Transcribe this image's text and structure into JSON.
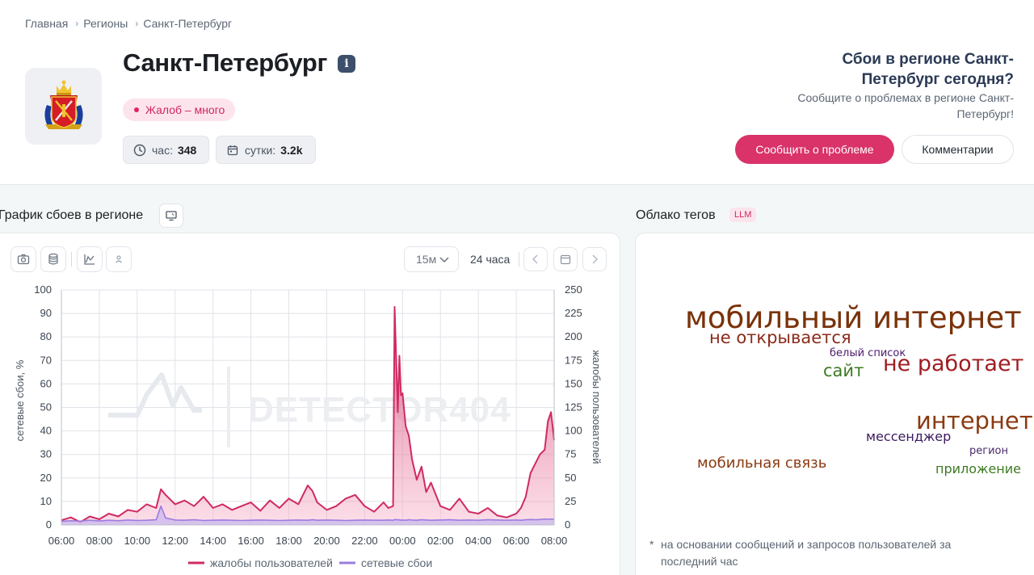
{
  "breadcrumb": [
    "Главная",
    "Регионы",
    "Санкт-Петербург"
  ],
  "page": {
    "title": "Санкт-Петербург",
    "info": "i"
  },
  "status": {
    "label": "Жалоб – много"
  },
  "stats": {
    "hour": {
      "label": "час:",
      "value": "348"
    },
    "day": {
      "label": "сутки:",
      "value": "3.2k"
    }
  },
  "right": {
    "title": "Сбои в регионе Санкт-Петербург сегодня?",
    "subtitle": "Сообщите о проблемах в регионе Санкт-Петербург!",
    "report_button": "Сообщить о проблеме",
    "comments_button": "Комментарии"
  },
  "chart_section": {
    "title": "График сбоев в регионе"
  },
  "toolbar": {
    "interval": "15м",
    "range": "24 часа"
  },
  "cloud_section": {
    "title": "Облако тегов",
    "badge": "LLM"
  },
  "cloud_words": [
    {
      "text": "мобильный интернет",
      "color": "#7a3209"
    },
    {
      "text": "не открывается",
      "color": "#8b2b1a"
    },
    {
      "text": "белый список",
      "color": "#4a1a6b"
    },
    {
      "text": "сайт",
      "color": "#3d7a22"
    },
    {
      "text": "не работает",
      "color": "#a01c22"
    },
    {
      "text": "интернет",
      "color": "#8a3a10"
    },
    {
      "text": "мессенджер",
      "color": "#3a1a5e"
    },
    {
      "text": "регион",
      "color": "#4a2a6b"
    },
    {
      "text": "мобильная связь",
      "color": "#8a3a10"
    },
    {
      "text": "приложение",
      "color": "#3d7a22"
    }
  ],
  "footnote": {
    "star": "*",
    "text": "на основании сообщений и запросов пользователей за последний час"
  },
  "colors": {
    "complaints": "#d02a62",
    "outages": "#9b7de0",
    "accent": "#d9336a"
  },
  "chart_data": {
    "type": "area",
    "x": [
      "06:00",
      "06:30",
      "07:00",
      "07:30",
      "08:00",
      "08:30",
      "09:00",
      "09:30",
      "10:00",
      "10:30",
      "11:00",
      "11:15",
      "11:30",
      "12:00",
      "12:30",
      "13:00",
      "13:30",
      "14:00",
      "14:30",
      "15:00",
      "15:30",
      "16:00",
      "16:30",
      "17:00",
      "17:30",
      "18:00",
      "18:30",
      "19:00",
      "19:15",
      "19:30",
      "20:00",
      "20:30",
      "21:00",
      "21:30",
      "22:00",
      "22:30",
      "23:00",
      "23:15",
      "23:30",
      "23:35",
      "23:40",
      "23:45",
      "23:50",
      "23:55",
      "00:00",
      "00:10",
      "00:20",
      "00:30",
      "00:45",
      "01:00",
      "01:15",
      "01:30",
      "02:00",
      "02:30",
      "03:00",
      "03:30",
      "04:00",
      "04:30",
      "05:00",
      "05:30",
      "06:00",
      "06:15",
      "06:30",
      "06:45",
      "07:00",
      "07:15",
      "07:30",
      "07:40",
      "07:50",
      "08:00"
    ],
    "series": [
      {
        "name": "жалобы пользователей",
        "axis": "right",
        "values": [
          5,
          8,
          3,
          9,
          6,
          12,
          9,
          16,
          14,
          22,
          18,
          38,
          32,
          22,
          26,
          20,
          30,
          18,
          22,
          16,
          20,
          24,
          15,
          26,
          18,
          28,
          22,
          42,
          36,
          24,
          16,
          20,
          28,
          32,
          20,
          14,
          24,
          18,
          20,
          232,
          175,
          120,
          180,
          138,
          140,
          105,
          95,
          70,
          48,
          62,
          35,
          45,
          20,
          16,
          28,
          14,
          12,
          18,
          10,
          8,
          12,
          18,
          30,
          55,
          65,
          75,
          80,
          110,
          120,
          90
        ]
      },
      {
        "name": "сетевые сбои",
        "axis": "left",
        "values": [
          1.5,
          1.8,
          1.6,
          2,
          1.7,
          2,
          1.8,
          2.1,
          1.9,
          2,
          2.2,
          8,
          3,
          2.1,
          2,
          2.2,
          1.9,
          2,
          2.1,
          2,
          1.9,
          2,
          2.1,
          2,
          1.9,
          2,
          2.1,
          2,
          2.2,
          2,
          2.1,
          2,
          1.9,
          2,
          2.1,
          2,
          2,
          2.1,
          2,
          2.2,
          2.3,
          2.1,
          2.2,
          2,
          2.1,
          2,
          2.2,
          2.1,
          2,
          2.2,
          2.1,
          2,
          2.1,
          2.2,
          2,
          2.1,
          2,
          2.2,
          2.1,
          2,
          2.1,
          2,
          2.2,
          2.3,
          2.2,
          2.3,
          2.5,
          2.4,
          2.5,
          2.4
        ]
      }
    ],
    "y_left": {
      "label": "сетевые сбои, %",
      "ticks": [
        0,
        10,
        20,
        30,
        40,
        50,
        60,
        70,
        80,
        90,
        100
      ],
      "range": [
        0,
        100
      ]
    },
    "y_right": {
      "label": "жалобы пользователей",
      "ticks": [
        0,
        25,
        50,
        75,
        100,
        125,
        150,
        175,
        200,
        225,
        250
      ],
      "range": [
        0,
        250
      ]
    },
    "x_ticks": [
      "06:00",
      "08:00",
      "10:00",
      "12:00",
      "14:00",
      "16:00",
      "18:00",
      "20:00",
      "22:00",
      "00:00",
      "02:00",
      "04:00",
      "06:00",
      "08:00"
    ],
    "watermark": "DETECTOR404",
    "grid": true,
    "legend": {
      "position": "bottom",
      "items": [
        "жалобы пользователей",
        "сетевые сбои"
      ]
    }
  }
}
